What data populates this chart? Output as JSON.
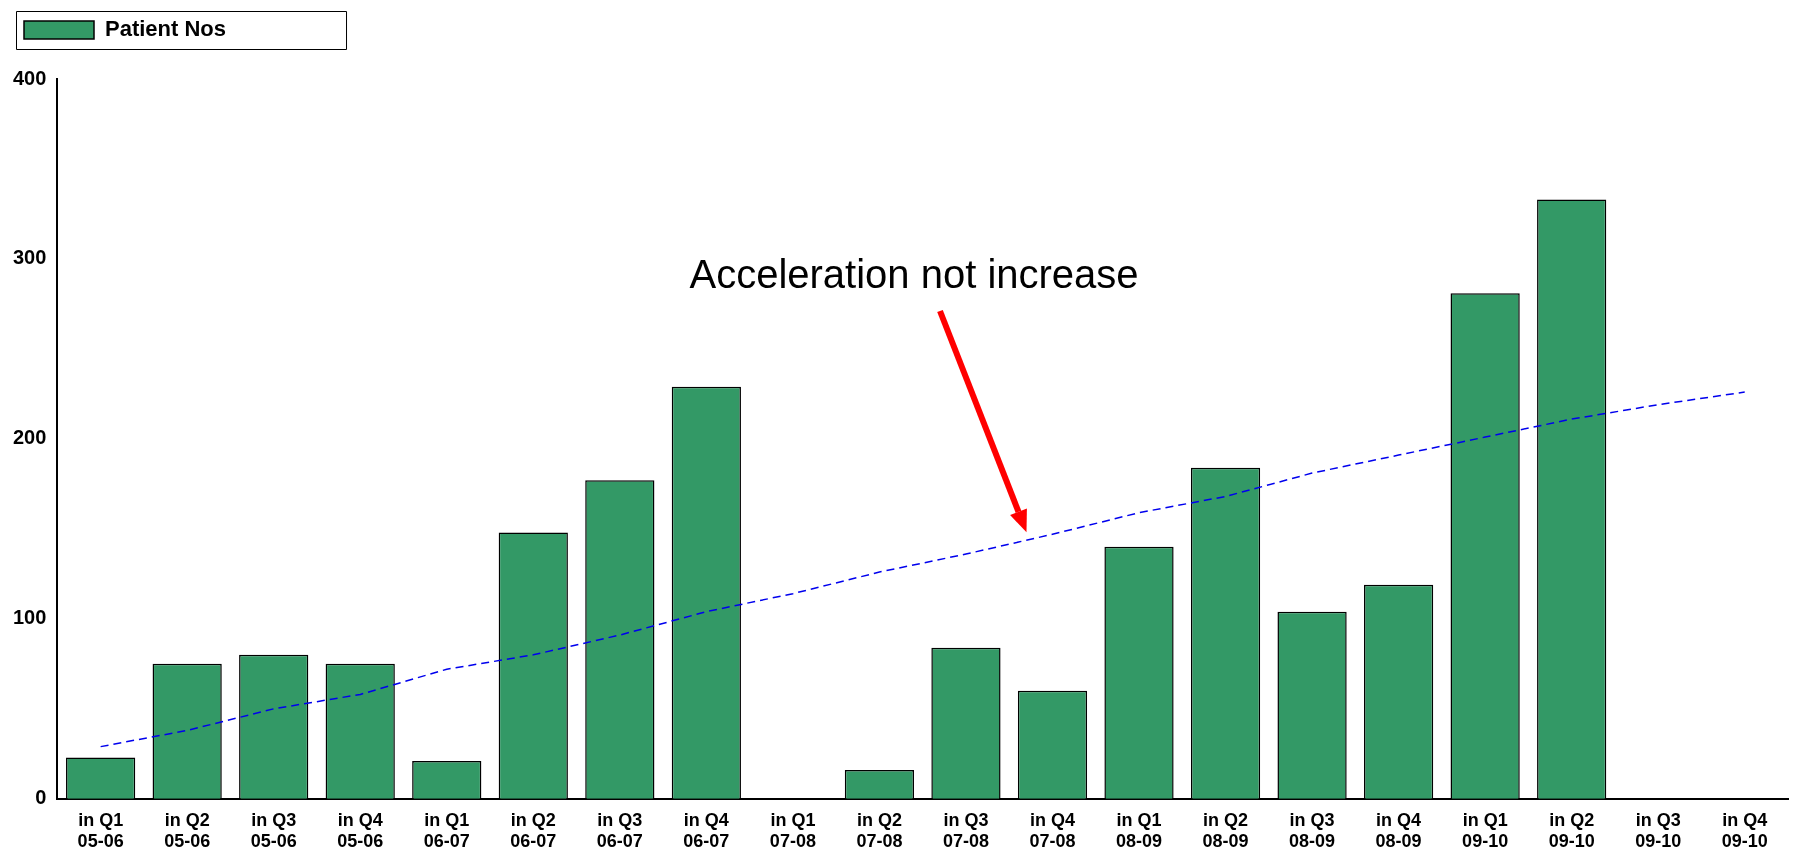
{
  "chart_data": {
    "type": "bar",
    "categories": [
      "in Q1\n05-06",
      "in Q2\n05-06",
      "in Q3\n05-06",
      "in Q4\n05-06",
      "in Q1\n06-07",
      "in Q2\n06-07",
      "in Q3\n06-07",
      "in Q4\n06-07",
      "in Q1\n07-08",
      "in Q2\n07-08",
      "in Q3\n07-08",
      "in Q4\n07-08",
      "in Q1\n08-09",
      "in Q2\n08-09",
      "in Q3\n08-09",
      "in Q4\n08-09",
      "in Q1\n09-10",
      "in Q2\n09-10",
      "in Q3\n09-10",
      "in Q4\n09-10"
    ],
    "series": [
      {
        "name": "Patient Nos",
        "color": "#339966",
        "values": [
          23,
          75,
          80,
          75,
          21,
          148,
          177,
          229,
          null,
          16,
          84,
          60,
          140,
          184,
          104,
          119,
          281,
          333,
          null,
          null
        ]
      },
      {
        "type": "line",
        "color": "#0000ee",
        "line_style": "dashed",
        "marker": "none",
        "values": [
          29,
          38,
          50,
          58,
          72,
          80,
          91,
          104,
          114,
          126,
          136,
          147,
          159,
          168,
          181,
          191,
          201,
          211,
          219,
          226
        ]
      }
    ],
    "ylim": [
      0,
      400
    ],
    "yticks": [
      0,
      100,
      200,
      300,
      400
    ],
    "grid": false,
    "legend": "top left",
    "annotations": [
      "Acceleration not increase"
    ]
  }
}
